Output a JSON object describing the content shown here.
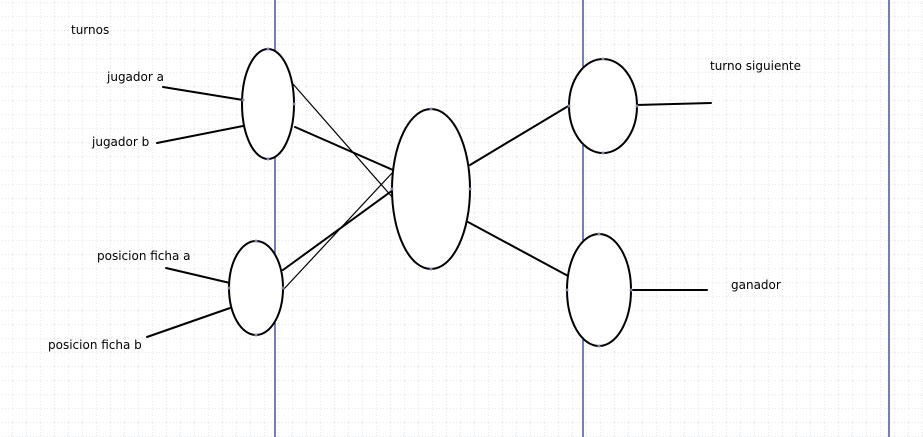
{
  "diagram": {
    "title": "turnos",
    "inputs": {
      "jugador_a": "jugador a",
      "jugador_b": "jugador b",
      "posicion_ficha_a": "posicion ficha a",
      "posicion_ficha_b": "posicion ficha b"
    },
    "outputs": {
      "turno_siguiente": "turno siguiente",
      "ganador": "ganador"
    }
  },
  "colors": {
    "background": "#ffffff",
    "grid_dot": "#c6ccd2",
    "guide_line": "#1c2a8c",
    "stroke": "#000000",
    "node_fill": "#ffffff",
    "handle": "#7b86b8"
  }
}
